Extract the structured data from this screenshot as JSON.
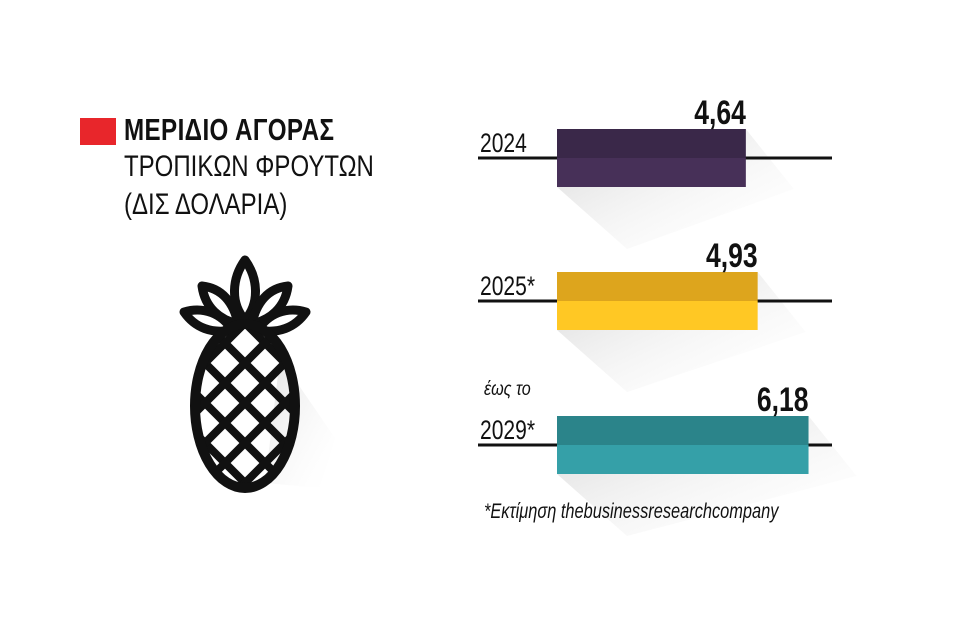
{
  "header": {
    "title": "ΜΕΡΙΔΙΟ ΑΓΟΡΑΣ",
    "subtitle_line1": "ΤΡΟΠΙΚΩΝ ΦΡΟΥΤΩΝ",
    "subtitle_line2": "(ΔΙΣ ΔΟΛΑΡΙΑ)"
  },
  "icon": "pineapple-icon",
  "footnote": "*Εκτίμηση thebusinessresearchcompany",
  "colors": {
    "accent": "#e8262b",
    "bar_2024": "#3f2b4f",
    "bar_2025": "#f0b320",
    "bar_2029": "#2f8f96"
  },
  "chart_data": {
    "type": "bar",
    "orientation": "horizontal",
    "categories": [
      "2024",
      "2025*",
      "2029*"
    ],
    "category_prefix": [
      "",
      "",
      "έως το"
    ],
    "values": [
      4.64,
      4.93,
      6.18
    ],
    "value_labels": [
      "4,64",
      "4,93",
      "6,18"
    ],
    "colors": [
      "#3f2b4f",
      "#f0b320",
      "#2f8f96"
    ],
    "title": "ΜΕΡΙΔΙΟ ΑΓΟΡΑΣ ΤΡΟΠΙΚΩΝ ΦΡΟΥΤΩΝ",
    "unit": "ΔΙΣ ΔΟΛΑΡΙΑ",
    "xlabel": "",
    "ylabel": "",
    "grid": false,
    "legend": "none"
  }
}
